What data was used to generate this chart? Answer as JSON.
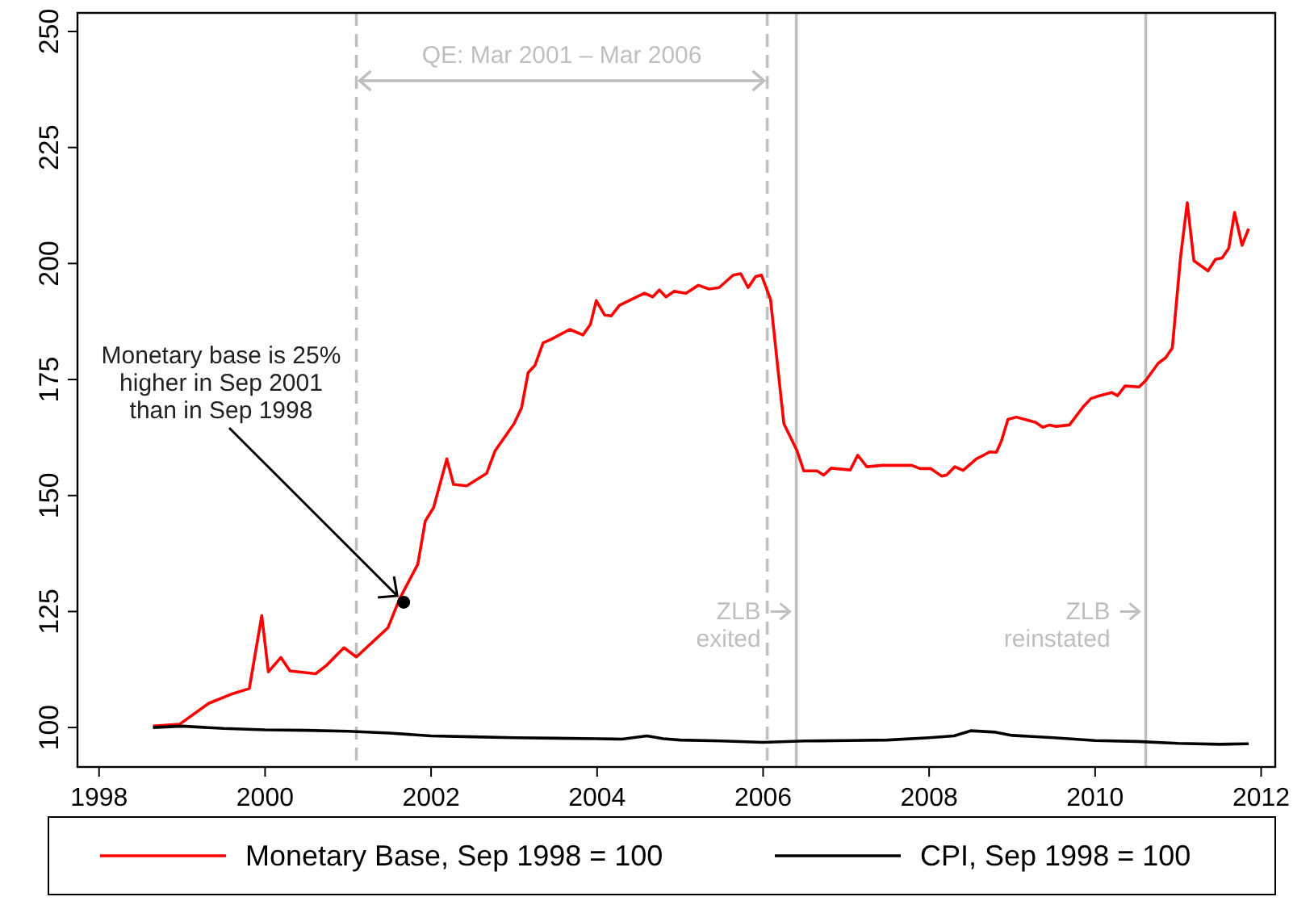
{
  "chart_data": {
    "type": "line",
    "xlim": [
      1997.74,
      2012.17
    ],
    "ylim": [
      91.5,
      254
    ],
    "xticks": [
      1998,
      2000,
      2002,
      2004,
      2006,
      2008,
      2010,
      2012
    ],
    "yticks": [
      100,
      125,
      150,
      175,
      200,
      225,
      250
    ],
    "grid": false,
    "legend": "bottom",
    "line_style": "solid",
    "marker": "none",
    "series": [
      {
        "name": "Monetary Base, Sep 1998 = 100",
        "color": "#ff0000",
        "x": [
          1998.65,
          1998.97,
          1999.32,
          1999.61,
          1999.81,
          1999.96,
          2000.04,
          2000.19,
          2000.3,
          2000.61,
          2000.74,
          2000.95,
          2001.1,
          2001.48,
          2001.62,
          2001.84,
          2001.93,
          2002.03,
          2002.19,
          2002.27,
          2002.43,
          2002.67,
          2002.77,
          2003.0,
          2003.09,
          2003.17,
          2003.25,
          2003.35,
          2003.45,
          2003.67,
          2003.83,
          2003.92,
          2003.99,
          2004.09,
          2004.17,
          2004.27,
          2004.57,
          2004.67,
          2004.75,
          2004.83,
          2004.93,
          2005.07,
          2005.22,
          2005.35,
          2005.47,
          2005.64,
          2005.73,
          2005.82,
          2005.91,
          2005.98,
          2006.09,
          2006.18,
          2006.25,
          2006.41,
          2006.49,
          2006.65,
          2006.73,
          2006.82,
          2007.05,
          2007.14,
          2007.25,
          2007.44,
          2007.79,
          2007.89,
          2008.02,
          2008.15,
          2008.21,
          2008.31,
          2008.41,
          2008.57,
          2008.73,
          2008.81,
          2008.87,
          2008.95,
          2009.05,
          2009.28,
          2009.37,
          2009.45,
          2009.53,
          2009.69,
          2009.86,
          2009.95,
          2010.05,
          2010.2,
          2010.27,
          2010.36,
          2010.53,
          2010.61,
          2010.76,
          2010.85,
          2010.93,
          2011.03,
          2011.11,
          2011.19,
          2011.36,
          2011.45,
          2011.53,
          2011.61,
          2011.68,
          2011.77,
          2011.85
        ],
        "values": [
          100.3,
          100.7,
          105.2,
          107.3,
          108.4,
          124.1,
          112,
          115.1,
          112.2,
          111.6,
          113.4,
          117.2,
          115.2,
          121.5,
          127.7,
          135.2,
          144.5,
          147.4,
          157.9,
          152.4,
          152.1,
          154.8,
          159.6,
          165.5,
          168.9,
          176.5,
          178,
          182.9,
          183.7,
          185.8,
          184.6,
          186.9,
          192,
          188.9,
          188.7,
          191,
          193.6,
          192.8,
          194.3,
          192.8,
          194,
          193.6,
          195.3,
          194.5,
          194.8,
          197.5,
          197.8,
          194.8,
          197.2,
          197.5,
          192.2,
          177.1,
          165.5,
          159.6,
          155.3,
          155.3,
          154.4,
          155.9,
          155.5,
          158.7,
          156.2,
          156.5,
          156.5,
          155.8,
          155.8,
          154.2,
          154.4,
          156.2,
          155.4,
          157.9,
          159.4,
          159.3,
          161.7,
          166.4,
          166.9,
          165.8,
          164.7,
          165.2,
          164.9,
          165.2,
          169.2,
          170.9,
          171.5,
          172.2,
          171.5,
          173.6,
          173.4,
          174.8,
          178.5,
          179.7,
          181.8,
          201.5,
          213.1,
          200.6,
          198.4,
          200.9,
          201.2,
          203.3,
          211,
          203.9,
          207.5
        ]
      },
      {
        "name": "CPI, Sep 1998 = 100",
        "color": "#000000",
        "x": [
          1998.65,
          1999.0,
          1999.5,
          2000.0,
          2000.5,
          2001.0,
          2001.5,
          2002.0,
          2002.5,
          2003.0,
          2003.5,
          2004.0,
          2004.3,
          2004.6,
          2004.8,
          2005.0,
          2005.5,
          2006.0,
          2006.5,
          2007.0,
          2007.5,
          2008.0,
          2008.3,
          2008.5,
          2008.8,
          2009.0,
          2009.5,
          2010.0,
          2010.5,
          2011.0,
          2011.5,
          2011.85
        ],
        "values": [
          100,
          100.3,
          99.8,
          99.5,
          99.4,
          99.2,
          98.8,
          98.2,
          98.0,
          97.8,
          97.7,
          97.6,
          97.5,
          98.2,
          97.6,
          97.3,
          97.1,
          96.8,
          97.1,
          97.2,
          97.3,
          97.8,
          98.2,
          99.3,
          99.0,
          98.3,
          97.8,
          97.2,
          97.0,
          96.6,
          96.4,
          96.5
        ]
      }
    ],
    "ref_lines": [
      {
        "axis": "x",
        "value": 2001.1,
        "line_style": "dashed",
        "color": "#bfbfbf"
      },
      {
        "axis": "x",
        "value": 2006.05,
        "line_style": "dashed",
        "color": "#bfbfbf"
      },
      {
        "axis": "x",
        "value": 2006.4,
        "label": "ZLB\nexited",
        "line_style": "solid",
        "color": "#bfbfbf"
      },
      {
        "axis": "x",
        "value": 2010.61,
        "label": "ZLB\nreinstated",
        "line_style": "solid",
        "color": "#bfbfbf"
      }
    ],
    "annotations": [
      "QE: Mar 2001 – Mar 2006",
      {
        "text": "Monetary base is 25%\nhigher in Sep 2001\nthan in Sep 1998",
        "x": 2001.67,
        "y": 127
      }
    ]
  }
}
